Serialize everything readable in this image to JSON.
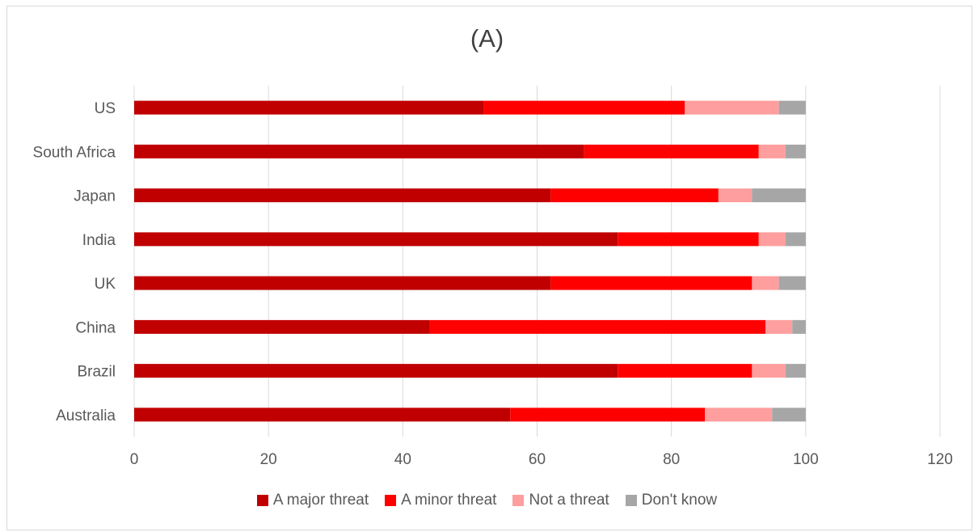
{
  "chart_data": {
    "type": "bar",
    "orientation": "horizontal",
    "stacked": true,
    "title": "(A)",
    "xlabel": "",
    "ylabel": "",
    "xlim": [
      0,
      120
    ],
    "xticks": [
      0,
      20,
      40,
      60,
      80,
      100,
      120
    ],
    "grid": "vertical",
    "legend_position": "bottom",
    "categories": [
      "US",
      "South Africa",
      "Japan",
      "India",
      "UK",
      "China",
      "Brazil",
      "Australia"
    ],
    "series": [
      {
        "name": "A major threat",
        "color": "#c00000",
        "values": [
          52,
          67,
          62,
          72,
          62,
          44,
          72,
          56
        ]
      },
      {
        "name": "A minor threat",
        "color": "#ff0000",
        "values": [
          30,
          26,
          25,
          21,
          30,
          50,
          20,
          29
        ]
      },
      {
        "name": "Not a threat",
        "color": "#ff9e9e",
        "values": [
          14,
          4,
          5,
          4,
          4,
          4,
          5,
          10
        ]
      },
      {
        "name": "Don't know",
        "color": "#a6a6a6",
        "values": [
          4,
          3,
          8,
          3,
          4,
          2,
          3,
          5
        ]
      }
    ]
  }
}
